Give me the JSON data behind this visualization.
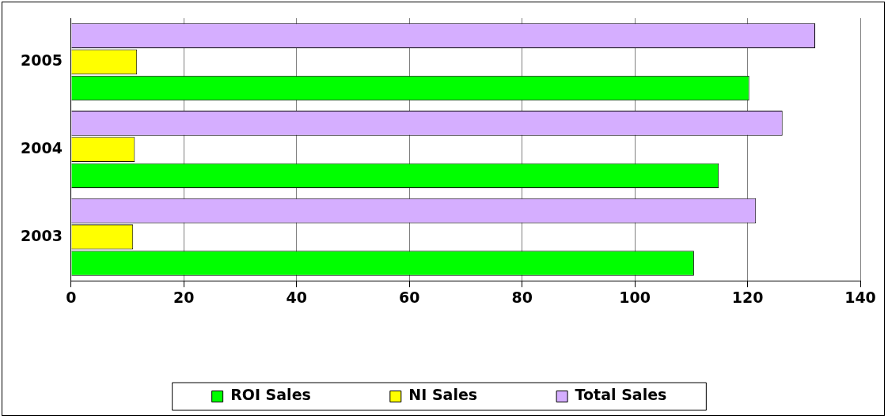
{
  "chart_data": {
    "type": "bar",
    "orientation": "horizontal",
    "categories": [
      "2005",
      "2004",
      "2003"
    ],
    "series": [
      {
        "name": "ROI Sales",
        "color": "#00ff00",
        "values": [
          120.3,
          114.9,
          110.5
        ]
      },
      {
        "name": "NI Sales",
        "color": "#ffff00",
        "values": [
          11.7,
          11.3,
          11.0
        ]
      },
      {
        "name": "Total Sales",
        "color": "#d5aeff",
        "values": [
          132.0,
          126.2,
          121.5
        ]
      }
    ],
    "xlim": [
      0,
      140
    ],
    "xticks": [
      0,
      20,
      40,
      60,
      80,
      100,
      120,
      140
    ],
    "grid": "x",
    "legend": "bottom"
  }
}
